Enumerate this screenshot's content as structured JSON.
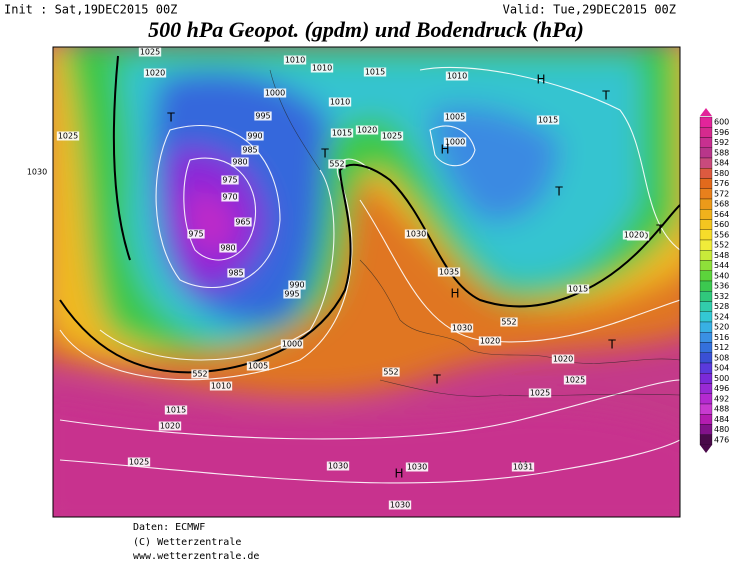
{
  "header": {
    "init": "Init : Sat,19DEC2015 00Z",
    "valid": "Valid: Tue,29DEC2015 00Z",
    "title": "500 hPa Geopot. (gpdm) und Bodendruck (hPa)"
  },
  "colorbar": {
    "levels": [
      600,
      596,
      592,
      588,
      584,
      580,
      576,
      572,
      568,
      564,
      560,
      556,
      552,
      548,
      544,
      540,
      536,
      532,
      528,
      524,
      520,
      516,
      512,
      508,
      504,
      500,
      496,
      492,
      488,
      484,
      480,
      476
    ],
    "colors": [
      "#e2249a",
      "#d52a8e",
      "#c83090",
      "#b8368a",
      "#c94a7c",
      "#dc5a40",
      "#e26a1c",
      "#e8801c",
      "#ec9a1a",
      "#f0b21c",
      "#f3c620",
      "#f6dc2a",
      "#f0ec3a",
      "#c8ea3a",
      "#8ee03a",
      "#5cd43c",
      "#3cc850",
      "#30c87c",
      "#32ccac",
      "#34c8d4",
      "#38b0e4",
      "#3a90e4",
      "#3470dc",
      "#3a50d4",
      "#5a3adc",
      "#7a2ad8",
      "#982ad4",
      "#b42ad0",
      "#c83ad0",
      "#b41cb0",
      "#82128a",
      "#4a0a4a"
    ]
  },
  "map": {
    "labels": [
      "1025",
      "1020",
      "1010",
      "1010",
      "1015",
      "1000",
      "995",
      "990",
      "985",
      "980",
      "975",
      "970",
      "965",
      "975",
      "980",
      "985",
      "990",
      "995",
      "1000",
      "1005",
      "1010",
      "1015",
      "1020",
      "1025",
      "1030",
      "1035",
      "1030",
      "1025",
      "1020",
      "1015",
      "1010",
      "1005",
      "1000",
      "1010",
      "1015",
      "1020",
      "1025",
      "1030",
      "1030",
      "1030",
      "1025",
      "1030",
      "1020",
      "1015",
      "552",
      "552",
      "552",
      "552",
      "H",
      "H",
      "H",
      "H",
      "H",
      "T",
      "T",
      "T",
      "T",
      "T",
      "T",
      "T",
      "1031",
      "1025",
      "1030",
      "1020"
    ]
  },
  "footer": {
    "source": "Daten: ECMWF",
    "copyright": "(C) Wetterzentrale",
    "url": "www.wetterzentrale.de"
  }
}
